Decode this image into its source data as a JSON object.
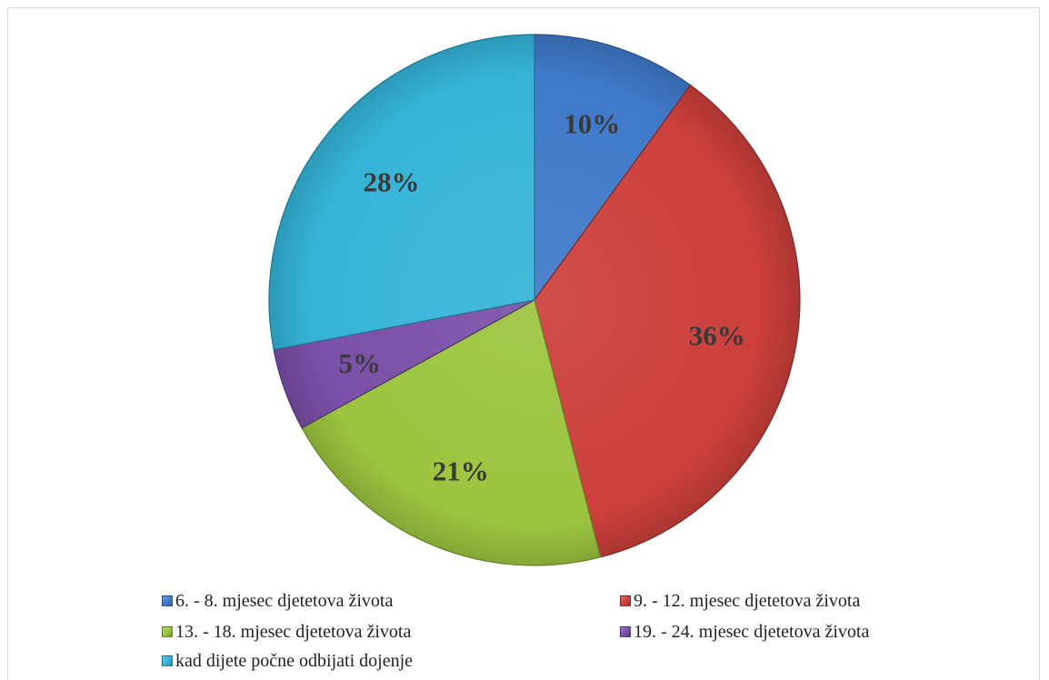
{
  "chart_data": {
    "type": "pie",
    "title": "",
    "legend_position": "bottom",
    "slices": [
      {
        "label": "6. - 8. mjesec djetetova života",
        "value": 10,
        "display": "10%",
        "color": "#3F79C9"
      },
      {
        "label": "9. - 12. mjesec djetetova života",
        "value": 36,
        "display": "36%",
        "color": "#CC3F3B"
      },
      {
        "label": "13. - 18. mjesec djetetova života",
        "value": 21,
        "display": "21%",
        "color": "#9CC43F"
      },
      {
        "label": "19. - 24. mjesec djetetova života",
        "value": 5,
        "display": "5%",
        "color": "#7A4FA8"
      },
      {
        "label": "kad dijete počne odbijati dojenje",
        "value": 28,
        "display": "28%",
        "color": "#35B4D8"
      }
    ]
  }
}
